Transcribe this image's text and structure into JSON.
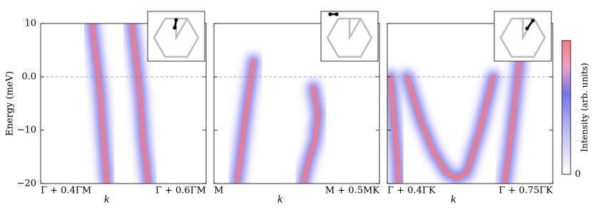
{
  "chart_data": [
    {
      "type": "line",
      "ylabel": "Energy (meV)",
      "xlabel": "k",
      "xlim": [
        0,
        1
      ],
      "xticks": [
        {
          "value": 0,
          "label": "Γ + 0.4ΓM"
        },
        {
          "value": 1,
          "label": "Γ + 0.6ΓM"
        }
      ],
      "ylim": [
        -20,
        10
      ],
      "yticks": [
        10,
        {
          "value": 0,
          "label": "0.0"
        },
        {
          "value": -10,
          "label": "−10"
        },
        {
          "value": -20,
          "label": "−20"
        }
      ],
      "hline": 0,
      "series": [
        {
          "color": "#f47c85",
          "x": [
            0.31,
            0.33,
            0.36,
            0.38,
            0.4
          ],
          "values": [
            10,
            5,
            -3,
            -12,
            -20
          ]
        },
        {
          "color": "#f47c85",
          "x": [
            0.55,
            0.57,
            0.6,
            0.62,
            0.65
          ],
          "values": [
            10,
            5,
            -3,
            -12,
            -20
          ]
        }
      ]
    },
    {
      "type": "line",
      "xlabel": "k",
      "xlim": [
        0,
        1
      ],
      "xticks": [
        {
          "value": 0,
          "label": "M"
        },
        {
          "value": 1,
          "label": "M + 0.5MK"
        }
      ],
      "ylim": [
        -20,
        10
      ],
      "yticks": [
        10,
        0,
        -10,
        -20
      ],
      "hline": 0,
      "series": [
        {
          "color": "#f47c85",
          "x": [
            0.24,
            0.21,
            0.18,
            0.16,
            0.14
          ],
          "values": [
            3,
            -3,
            -10,
            -15,
            -20
          ]
        },
        {
          "color": "#f47c85",
          "x": [
            0.6,
            0.63,
            0.61,
            0.57,
            0.54
          ],
          "values": [
            -2,
            -7,
            -12,
            -16,
            -20
          ]
        }
      ]
    },
    {
      "type": "line",
      "xlabel": "k",
      "xlim": [
        0,
        1
      ],
      "xticks": [
        {
          "value": 0,
          "label": "Γ + 0.4ΓK"
        },
        {
          "value": 1,
          "label": "Γ + 0.75ΓK"
        }
      ],
      "ylim": [
        -20,
        10
      ],
      "yticks": [
        10,
        0,
        -10,
        -20
      ],
      "hline": 0,
      "series": [
        {
          "color": "#f47c85",
          "x": [
            0.02,
            0.04,
            0.06,
            0.07
          ],
          "values": [
            0,
            -8,
            -15,
            -20
          ]
        },
        {
          "color": "#f47c85",
          "x": [
            0.12,
            0.2,
            0.28,
            0.36,
            0.42,
            0.48,
            0.56,
            0.64
          ],
          "values": [
            0,
            -8,
            -14,
            -18,
            -19,
            -18,
            -10,
            0
          ]
        },
        {
          "color": "#f47c85",
          "x": [
            0.82,
            0.8,
            0.77,
            0.74,
            0.71
          ],
          "values": [
            10,
            3,
            -5,
            -13,
            -20
          ]
        }
      ]
    }
  ],
  "colorbar": {
    "label": "Intensity (arb. units)",
    "tick_label": "0"
  }
}
